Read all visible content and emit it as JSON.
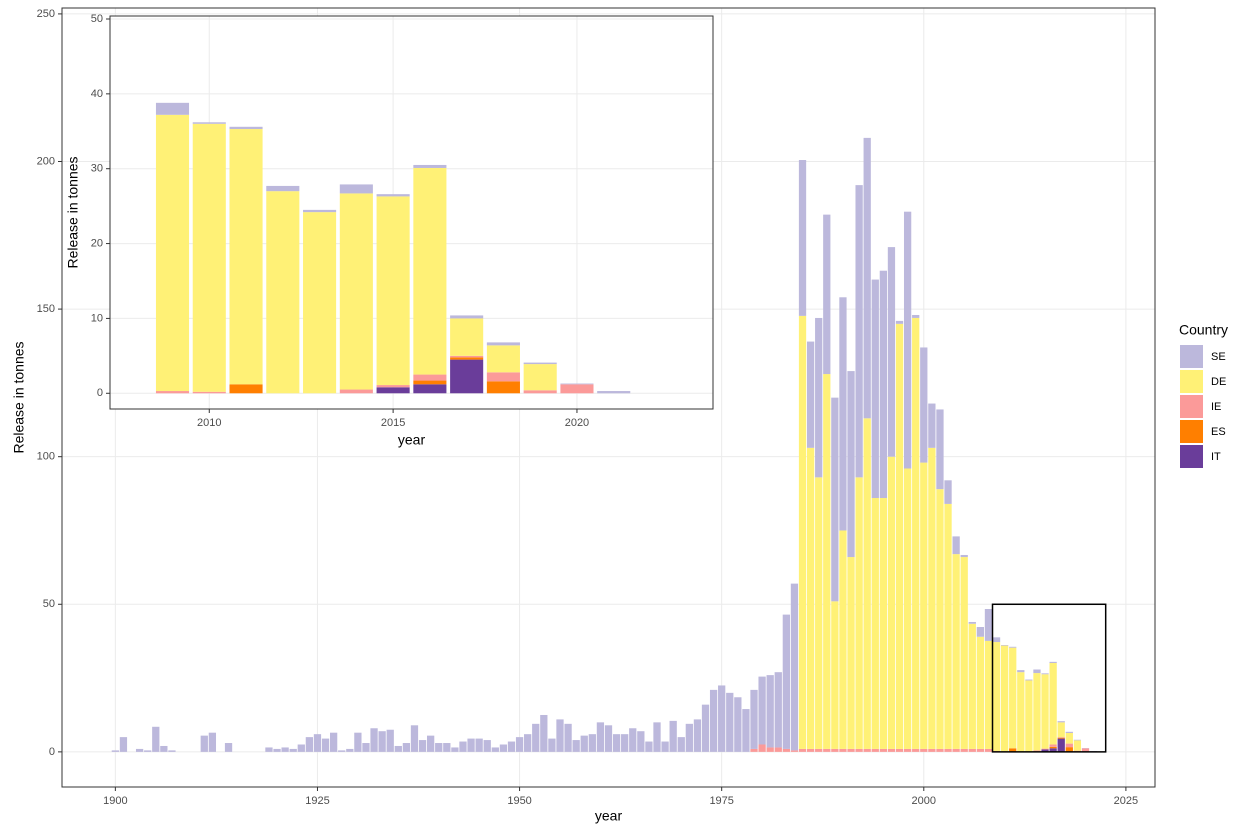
{
  "chart_data": [
    {
      "type": "bar",
      "stacked": true,
      "x_label": "year",
      "y_label": "Release in tonnes",
      "legend_title": "Country",
      "legend": "right",
      "grid": true,
      "x": [
        1900,
        1901,
        1902,
        1903,
        1904,
        1905,
        1906,
        1907,
        1908,
        1909,
        1910,
        1911,
        1912,
        1913,
        1914,
        1915,
        1916,
        1917,
        1918,
        1919,
        1920,
        1921,
        1922,
        1923,
        1924,
        1925,
        1926,
        1927,
        1928,
        1929,
        1930,
        1931,
        1932,
        1933,
        1934,
        1935,
        1936,
        1937,
        1938,
        1939,
        1940,
        1941,
        1942,
        1943,
        1944,
        1945,
        1946,
        1947,
        1948,
        1949,
        1950,
        1951,
        1952,
        1953,
        1954,
        1955,
        1956,
        1957,
        1958,
        1959,
        1960,
        1961,
        1962,
        1963,
        1964,
        1965,
        1966,
        1967,
        1968,
        1969,
        1970,
        1971,
        1972,
        1973,
        1974,
        1975,
        1976,
        1977,
        1978,
        1979,
        1980,
        1981,
        1982,
        1983,
        1984,
        1985,
        1986,
        1987,
        1988,
        1989,
        1990,
        1991,
        1992,
        1993,
        1994,
        1995,
        1996,
        1997,
        1998,
        1999,
        2000,
        2001,
        2002,
        2003,
        2004,
        2005,
        2006,
        2007,
        2008,
        2009,
        2010,
        2011,
        2012,
        2013,
        2014,
        2015,
        2016,
        2017,
        2018,
        2019,
        2020,
        2021
      ],
      "series": [
        {
          "name": "SE",
          "color": "#bcb8dc",
          "values": [
            0.5,
            5,
            0,
            1,
            0.5,
            8.5,
            2,
            0.5,
            0,
            0,
            0,
            5.5,
            6.5,
            0,
            3,
            0,
            0,
            0,
            0,
            1.5,
            1,
            1.5,
            1,
            2.5,
            5,
            6,
            4.5,
            6.5,
            0.5,
            1,
            6.5,
            3,
            8,
            7,
            7.5,
            2,
            3,
            9,
            4,
            5.5,
            3,
            3,
            1.5,
            3.5,
            4.5,
            4.5,
            4,
            1.5,
            2.5,
            3.5,
            5,
            6,
            9.5,
            12.5,
            4.5,
            11,
            9.5,
            4,
            5.5,
            6,
            10,
            9,
            6,
            6,
            8,
            7,
            3.5,
            10,
            3.5,
            10.5,
            5,
            9.5,
            11,
            16,
            21,
            22.5,
            20,
            18.5,
            14.5,
            20,
            23,
            24.5,
            25.5,
            45.5,
            56.5,
            52.8,
            36,
            54,
            54,
            69,
            79,
            63,
            99,
            95,
            74,
            77,
            71,
            1,
            87,
            1,
            39,
            15,
            27,
            8,
            6,
            0.7,
            0.6,
            3.3,
            10.8,
            1.6,
            0.2,
            0.3,
            0.7,
            0.3,
            1.2,
            0.3,
            0.4,
            0.4,
            0.4,
            0.2,
            0.1,
            0.3
          ]
        },
        {
          "name": "DE",
          "color": "#fff176",
          "values": [
            0,
            0,
            0,
            0,
            0,
            0,
            0,
            0,
            0,
            0,
            0,
            0,
            0,
            0,
            0,
            0,
            0,
            0,
            0,
            0,
            0,
            0,
            0,
            0,
            0,
            0,
            0,
            0,
            0,
            0,
            0,
            0,
            0,
            0,
            0,
            0,
            0,
            0,
            0,
            0,
            0,
            0,
            0,
            0,
            0,
            0,
            0,
            0,
            0,
            0,
            0,
            0,
            0,
            0,
            0,
            0,
            0,
            0,
            0,
            0,
            0,
            0,
            0,
            0,
            0,
            0,
            0,
            0,
            0,
            0,
            0,
            0,
            0,
            0,
            0,
            0,
            0,
            0,
            0,
            0,
            0,
            0,
            0,
            0,
            0,
            146.7,
            102,
            92,
            127,
            50,
            74,
            65,
            92,
            112,
            85,
            85,
            99,
            144,
            95,
            146,
            97,
            102,
            88,
            83,
            66,
            65,
            42.4,
            38,
            36.6,
            36.9,
            35.8,
            34.1,
            27,
            24.2,
            26.2,
            25.2,
            27.6,
            5,
            3.6,
            3.5,
            0,
            0
          ]
        },
        {
          "name": "IE",
          "color": "#fb9a99",
          "values": [
            0,
            0,
            0,
            0,
            0,
            0,
            0,
            0,
            0,
            0,
            0,
            0,
            0,
            0,
            0,
            0,
            0,
            0,
            0,
            0,
            0,
            0,
            0,
            0,
            0,
            0,
            0,
            0,
            0,
            0,
            0,
            0,
            0,
            0,
            0,
            0,
            0,
            0,
            0,
            0,
            0,
            0,
            0,
            0,
            0,
            0,
            0,
            0,
            0,
            0,
            0,
            0,
            0,
            0,
            0,
            0,
            0,
            0,
            0,
            0,
            0,
            0,
            0,
            0,
            0,
            0,
            0,
            0,
            0,
            0,
            0,
            0,
            0,
            0,
            0,
            0,
            0,
            0,
            0,
            1,
            2.5,
            1.5,
            1.5,
            1,
            0.5,
            1,
            1,
            1,
            1,
            1,
            1,
            1,
            1,
            1,
            1,
            1,
            1,
            1,
            1,
            1,
            1,
            1,
            1,
            1,
            1,
            1,
            1,
            1,
            1,
            0.3,
            0.2,
            0,
            0,
            0,
            0.5,
            0.3,
            0.8,
            0.2,
            1.2,
            0.4,
            1.2,
            0
          ]
        },
        {
          "name": "ES",
          "color": "#ff7f00",
          "values": [
            0,
            0,
            0,
            0,
            0,
            0,
            0,
            0,
            0,
            0,
            0,
            0,
            0,
            0,
            0,
            0,
            0,
            0,
            0,
            0,
            0,
            0,
            0,
            0,
            0,
            0,
            0,
            0,
            0,
            0,
            0,
            0,
            0,
            0,
            0,
            0,
            0,
            0,
            0,
            0,
            0,
            0,
            0,
            0,
            0,
            0,
            0,
            0,
            0,
            0,
            0,
            0,
            0,
            0,
            0,
            0,
            0,
            0,
            0,
            0,
            0,
            0,
            0,
            0,
            0,
            0,
            0,
            0,
            0,
            0,
            0,
            0,
            0,
            0,
            0,
            0,
            0,
            0,
            0,
            0,
            0,
            0,
            0,
            0,
            0,
            0,
            0,
            0,
            0,
            0,
            0,
            0,
            0,
            0,
            0,
            0,
            0,
            0,
            0,
            0,
            0,
            0,
            0,
            0,
            0,
            0,
            0,
            0,
            0,
            0,
            0,
            1.2,
            0,
            0,
            0,
            0,
            0.5,
            0.3,
            1.6,
            0,
            0,
            0
          ]
        },
        {
          "name": "IT",
          "color": "#6a3d9a",
          "values": [
            0,
            0,
            0,
            0,
            0,
            0,
            0,
            0,
            0,
            0,
            0,
            0,
            0,
            0,
            0,
            0,
            0,
            0,
            0,
            0,
            0,
            0,
            0,
            0,
            0,
            0,
            0,
            0,
            0,
            0,
            0,
            0,
            0,
            0,
            0,
            0,
            0,
            0,
            0,
            0,
            0,
            0,
            0,
            0,
            0,
            0,
            0,
            0,
            0,
            0,
            0,
            0,
            0,
            0,
            0,
            0,
            0,
            0,
            0,
            0,
            0,
            0,
            0,
            0,
            0,
            0,
            0,
            0,
            0,
            0,
            0,
            0,
            0,
            0,
            0,
            0,
            0,
            0,
            0,
            0,
            0,
            0,
            0,
            0,
            0,
            0,
            0,
            0,
            0,
            0,
            0,
            0,
            0,
            0,
            0,
            0,
            0,
            0,
            0,
            0,
            0,
            0,
            0,
            0,
            0,
            0,
            0,
            0,
            0,
            0,
            0,
            0,
            0,
            0,
            0,
            0.8,
            1.2,
            4.5,
            0,
            0,
            0,
            0
          ]
        }
      ],
      "xlim": [
        1893.4,
        2028.6
      ],
      "xticks": [
        1900,
        1925,
        1950,
        1975,
        2000,
        2025
      ],
      "ylim": [
        -11.9,
        252
      ],
      "yticks": [
        0,
        50,
        100,
        150,
        200,
        250
      ],
      "zoom_box": {
        "xlim": [
          2008.5,
          2022.5
        ],
        "ylim": [
          0,
          50
        ]
      }
    },
    {
      "type": "bar",
      "stacked": true,
      "x_label": "year",
      "y_label": "Release in tonnes",
      "grid": true,
      "x": [
        2009,
        2010,
        2011,
        2012,
        2013,
        2014,
        2015,
        2016,
        2017,
        2018,
        2019,
        2020,
        2021
      ],
      "series": [
        {
          "name": "SE",
          "color": "#bcb8dc",
          "values": [
            1.6,
            0.2,
            0.3,
            0.7,
            0.3,
            1.2,
            0.3,
            0.4,
            0.4,
            0.4,
            0.2,
            0.1,
            0.3
          ]
        },
        {
          "name": "DE",
          "color": "#fff176",
          "values": [
            36.9,
            35.8,
            34.1,
            27,
            24.2,
            26.2,
            25.2,
            27.6,
            5,
            3.6,
            3.5,
            0,
            0
          ]
        },
        {
          "name": "IE",
          "color": "#fb9a99",
          "values": [
            0.3,
            0.2,
            0,
            0,
            0,
            0.5,
            0.3,
            0.8,
            0.2,
            1.2,
            0.4,
            1.2,
            0
          ]
        },
        {
          "name": "ES",
          "color": "#ff7f00",
          "values": [
            0,
            0,
            1.2,
            0,
            0,
            0,
            0,
            0.5,
            0.3,
            1.6,
            0,
            0,
            0
          ]
        },
        {
          "name": "IT",
          "color": "#6a3d9a",
          "values": [
            0,
            0,
            0,
            0,
            0,
            0,
            0.8,
            1.2,
            4.5,
            0,
            0,
            0,
            0
          ]
        }
      ],
      "xlim": [
        2007.3,
        2023.7
      ],
      "xticks": [
        2010,
        2015,
        2020
      ],
      "ylim": [
        -2.1,
        50.4
      ],
      "yticks": [
        0,
        10,
        20,
        30,
        40,
        50
      ]
    }
  ]
}
